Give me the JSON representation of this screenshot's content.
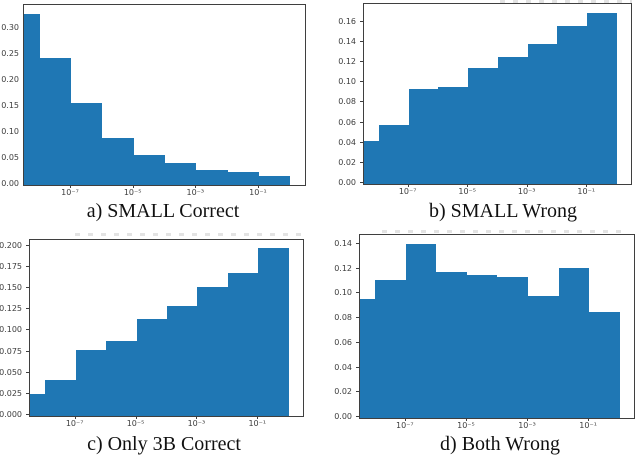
{
  "figure": {
    "background": "#ffffff",
    "bar_color": "#1f77b4",
    "spine_color": "#3f3f3f",
    "tick_label_color": "#3d3d3d",
    "caption_color": "#111111"
  },
  "chart_data": [
    {
      "id": "a",
      "type": "bar",
      "subtype": "histogram",
      "caption": "a) SMALL Correct",
      "xscale": "log",
      "xlabel": "",
      "ylabel": "",
      "grid": false,
      "x_log_range": [
        -8.5,
        0.47
      ],
      "bin_edges_log10": [
        -8.5,
        -8,
        -7,
        -6,
        -5,
        -4,
        -3,
        -2,
        -1,
        0
      ],
      "values": [
        0.33,
        0.245,
        0.158,
        0.091,
        0.058,
        0.042,
        0.028,
        0.025,
        0.018
      ],
      "ylim": [
        0,
        0.3465
      ],
      "x_ticks": [
        {
          "log10": -7,
          "label": "10⁻⁷"
        },
        {
          "log10": -5,
          "label": "10⁻⁵"
        },
        {
          "log10": -3,
          "label": "10⁻³"
        },
        {
          "log10": -1,
          "label": "10⁻¹"
        }
      ],
      "y_ticks": [
        {
          "value": 0.0,
          "label": "0.00"
        },
        {
          "value": 0.05,
          "label": "0.05"
        },
        {
          "value": 0.1,
          "label": "0.10"
        },
        {
          "value": 0.15,
          "label": "0.15"
        },
        {
          "value": 0.2,
          "label": "0.20"
        },
        {
          "value": 0.25,
          "label": "0.25"
        },
        {
          "value": 0.3,
          "label": "0.30"
        }
      ]
    },
    {
      "id": "b",
      "type": "bar",
      "subtype": "histogram",
      "caption": "b) SMALL Wrong",
      "xscale": "log",
      "xlabel": "",
      "ylabel": "",
      "grid": false,
      "x_log_range": [
        -8.5,
        0.47
      ],
      "bin_edges_log10": [
        -8.5,
        -8,
        -7,
        -6,
        -5,
        -4,
        -3,
        -2,
        -1,
        0
      ],
      "values": [
        0.043,
        0.059,
        0.094,
        0.096,
        0.115,
        0.126,
        0.139,
        0.157,
        0.17
      ],
      "ylim": [
        0,
        0.1785
      ],
      "x_ticks": [
        {
          "log10": -7,
          "label": "10⁻⁷"
        },
        {
          "log10": -5,
          "label": "10⁻⁵"
        },
        {
          "log10": -3,
          "label": "10⁻³"
        },
        {
          "log10": -1,
          "label": "10⁻¹"
        }
      ],
      "y_ticks": [
        {
          "value": 0.0,
          "label": "0.00"
        },
        {
          "value": 0.02,
          "label": "0.02"
        },
        {
          "value": 0.04,
          "label": "0.04"
        },
        {
          "value": 0.06,
          "label": "0.06"
        },
        {
          "value": 0.08,
          "label": "0.08"
        },
        {
          "value": 0.1,
          "label": "0.10"
        },
        {
          "value": 0.12,
          "label": "0.12"
        },
        {
          "value": 0.14,
          "label": "0.14"
        },
        {
          "value": 0.16,
          "label": "0.16"
        }
      ]
    },
    {
      "id": "c",
      "type": "bar",
      "subtype": "histogram",
      "caption": "c) Only 3B Correct",
      "xscale": "log",
      "xlabel": "",
      "ylabel": "",
      "grid": false,
      "x_log_range": [
        -8.5,
        0.47
      ],
      "bin_edges_log10": [
        -8.5,
        -8,
        -7,
        -6,
        -5,
        -4,
        -3,
        -2,
        -1,
        0
      ],
      "values": [
        0.026,
        0.042,
        0.078,
        0.089,
        0.115,
        0.13,
        0.152,
        0.169,
        0.198
      ],
      "ylim": [
        0,
        0.208
      ],
      "x_ticks": [
        {
          "log10": -7,
          "label": "10⁻⁷"
        },
        {
          "log10": -5,
          "label": "10⁻⁵"
        },
        {
          "log10": -3,
          "label": "10⁻³"
        },
        {
          "log10": -1,
          "label": "10⁻¹"
        }
      ],
      "y_ticks": [
        {
          "value": 0.0,
          "label": "0.000"
        },
        {
          "value": 0.025,
          "label": "0.025"
        },
        {
          "value": 0.05,
          "label": "0.050"
        },
        {
          "value": 0.075,
          "label": "0.075"
        },
        {
          "value": 0.1,
          "label": "0.100"
        },
        {
          "value": 0.125,
          "label": "0.125"
        },
        {
          "value": 0.15,
          "label": "0.150"
        },
        {
          "value": 0.175,
          "label": "0.175"
        },
        {
          "value": 0.2,
          "label": "0.200"
        }
      ]
    },
    {
      "id": "d",
      "type": "bar",
      "subtype": "histogram",
      "caption": "d) Both Wrong",
      "xscale": "log",
      "xlabel": "",
      "ylabel": "",
      "grid": false,
      "x_log_range": [
        -8.5,
        0.47
      ],
      "bin_edges_log10": [
        -8.5,
        -8,
        -7,
        -6,
        -5,
        -4,
        -3,
        -2,
        -1,
        0
      ],
      "values": [
        0.096,
        0.112,
        0.141,
        0.118,
        0.116,
        0.114,
        0.099,
        0.121,
        0.086
      ],
      "ylim": [
        0,
        0.148
      ],
      "x_ticks": [
        {
          "log10": -7,
          "label": "10⁻⁷"
        },
        {
          "log10": -5,
          "label": "10⁻⁵"
        },
        {
          "log10": -3,
          "label": "10⁻³"
        },
        {
          "log10": -1,
          "label": "10⁻¹"
        }
      ],
      "y_ticks": [
        {
          "value": 0.0,
          "label": "0.00"
        },
        {
          "value": 0.02,
          "label": "0.02"
        },
        {
          "value": 0.04,
          "label": "0.04"
        },
        {
          "value": 0.06,
          "label": "0.06"
        },
        {
          "value": 0.08,
          "label": "0.08"
        },
        {
          "value": 0.1,
          "label": "0.10"
        },
        {
          "value": 0.12,
          "label": "0.12"
        },
        {
          "value": 0.14,
          "label": "0.14"
        }
      ]
    }
  ]
}
